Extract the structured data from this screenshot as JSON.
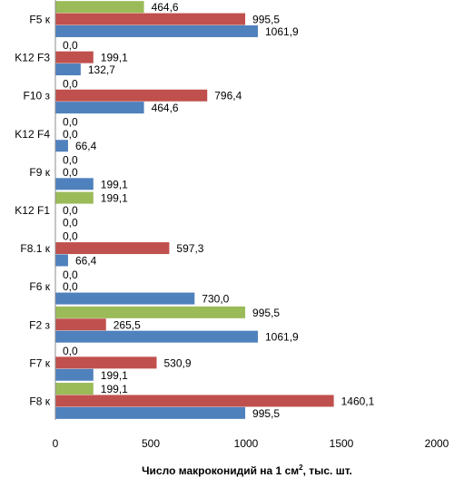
{
  "chart_data": {
    "type": "bar",
    "orientation": "horizontal",
    "categories": [
      "F5 к",
      "K12 F3",
      "F10 з",
      "K12 F4",
      "F9 к",
      "K12 F1",
      "F8.1 к",
      "F6 к",
      "F2 з",
      "F7 к",
      "F8 к"
    ],
    "series": [
      {
        "color": "#9bbb59",
        "values": [
          464.6,
          0.0,
          0.0,
          0.0,
          0.0,
          199.1,
          0.0,
          0.0,
          995.5,
          0.0,
          199.1
        ],
        "labels": [
          "464,6",
          "0,0",
          "0,0",
          "0,0",
          "0,0",
          "199,1",
          "0,0",
          "0,0",
          "995,5",
          "0,0",
          "199,1"
        ]
      },
      {
        "color": "#c0504d",
        "values": [
          995.5,
          199.1,
          796.4,
          0.0,
          0.0,
          0.0,
          597.3,
          0.0,
          265.5,
          530.9,
          1460.1
        ],
        "labels": [
          "995,5",
          "199,1",
          "796,4",
          "0,0",
          "0,0",
          "0,0",
          "597,3",
          "0,0",
          "265,5",
          "530,9",
          "1460,1"
        ]
      },
      {
        "color": "#4f81bd",
        "values": [
          1061.9,
          132.7,
          464.6,
          66.4,
          199.1,
          0.0,
          66.4,
          730.0,
          1061.9,
          199.1,
          995.5
        ],
        "labels": [
          "1061,9",
          "132,7",
          "464,6",
          "66,4",
          "199,1",
          "0,0",
          "66,4",
          "730,0",
          "1061,9",
          "199,1",
          "995,5"
        ]
      }
    ],
    "xlim": [
      0,
      2000
    ],
    "xticks": [
      0,
      500,
      1000,
      1500,
      2000
    ],
    "xtick_labels": [
      "0",
      "500",
      "1000",
      "1500",
      "2000"
    ],
    "xlabel": "Число макроконидий  на 1 см",
    "xlabel_sup": "2",
    "xlabel_suffix": ", тыс. шт.",
    "grid": false,
    "legend": "none"
  }
}
